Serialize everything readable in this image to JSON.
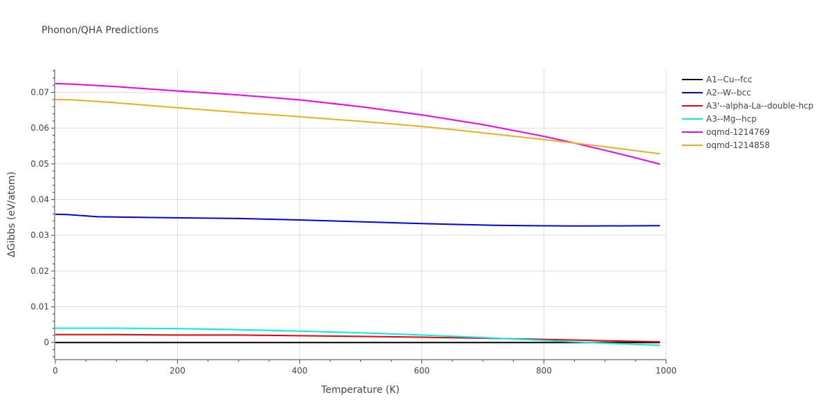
{
  "chart_data": {
    "type": "line",
    "title": "Phonon/QHA Predictions",
    "xlabel": "Temperature (K)",
    "ylabel": "ΔGibbs (eV/atom)",
    "xlim": [
      0,
      1000
    ],
    "ylim": [
      -0.0048,
      0.0765
    ],
    "x_ticks": [
      0,
      200,
      400,
      600,
      800,
      1000
    ],
    "y_ticks": [
      0,
      0.01,
      0.02,
      0.03,
      0.04,
      0.05,
      0.06,
      0.07
    ],
    "x_tick_labels": [
      "0",
      "200",
      "400",
      "600",
      "800",
      "1000"
    ],
    "y_tick_labels": [
      "0",
      "0.01",
      "0.02",
      "0.03",
      "0.04",
      "0.05",
      "0.06",
      "0.07"
    ],
    "grid": true,
    "legend_position": "top-right",
    "series": [
      {
        "name": "A1--Cu--fcc",
        "color": "#000000",
        "x": [
          0,
          200,
          400,
          600,
          800,
          990
        ],
        "y": [
          0,
          0,
          0,
          0,
          0,
          0
        ]
      },
      {
        "name": "A2--W--bcc",
        "color": "#0000dd",
        "x": [
          0,
          20,
          70,
          150,
          300,
          400,
          500,
          600,
          720,
          850,
          990
        ],
        "y": [
          0.0359,
          0.0358,
          0.0352,
          0.035,
          0.0347,
          0.0343,
          0.0338,
          0.0333,
          0.0328,
          0.0326,
          0.0327
        ]
      },
      {
        "name": "A3'--alpha-La--double-hcp",
        "color": "#ee0000",
        "x": [
          0,
          100,
          200,
          300,
          400,
          500,
          600,
          700,
          800,
          900,
          990
        ],
        "y": [
          0.0022,
          0.0022,
          0.0021,
          0.0021,
          0.0019,
          0.0017,
          0.0015,
          0.0012,
          0.0009,
          0.0005,
          0.0002
        ]
      },
      {
        "name": "A3--Mg--hcp",
        "color": "#00eeee",
        "x": [
          0,
          100,
          200,
          300,
          400,
          500,
          600,
          700,
          800,
          850,
          900,
          990
        ],
        "y": [
          0.004,
          0.004,
          0.0039,
          0.0036,
          0.0032,
          0.0027,
          0.0021,
          0.0014,
          0.0006,
          0.0002,
          -0.0002,
          -0.0008
        ]
      },
      {
        "name": "oqmd-1214769",
        "color": "#ee00ee",
        "x": [
          0,
          30,
          100,
          200,
          300,
          400,
          500,
          600,
          700,
          800,
          850,
          900,
          950,
          990
        ],
        "y": [
          0.0725,
          0.0723,
          0.0716,
          0.0704,
          0.0693,
          0.0679,
          0.066,
          0.0637,
          0.061,
          0.0577,
          0.0558,
          0.0538,
          0.0517,
          0.0499
        ]
      },
      {
        "name": "oqmd-1214858",
        "color": "#e6b020",
        "x": [
          0,
          30,
          100,
          200,
          300,
          400,
          500,
          600,
          700,
          800,
          900,
          990
        ],
        "y": [
          0.068,
          0.0679,
          0.0671,
          0.0657,
          0.0644,
          0.0632,
          0.0619,
          0.0605,
          0.0587,
          0.0568,
          0.0548,
          0.0528
        ]
      }
    ]
  }
}
